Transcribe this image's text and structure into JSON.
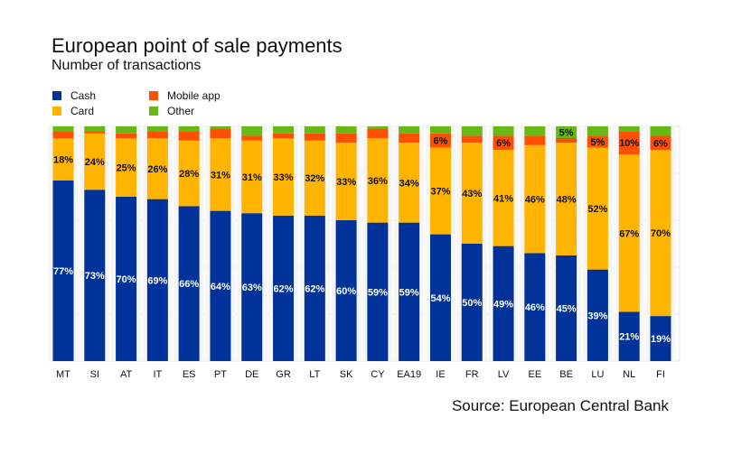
{
  "chart_data": {
    "type": "bar",
    "stacked": true,
    "title": "European point of sale payments",
    "subtitle": "Number of transactions",
    "source": "Source: European Central Bank",
    "legend_position": "top-left",
    "grid": true,
    "ylim": [
      0,
      100
    ],
    "unit": "%",
    "categories": [
      "MT",
      "SI",
      "AT",
      "IT",
      "ES",
      "PT",
      "DE",
      "GR",
      "LT",
      "SK",
      "CY",
      "EA19",
      "IE",
      "FR",
      "LV",
      "EE",
      "BE",
      "LU",
      "NL",
      "FI"
    ],
    "series": [
      {
        "name": "Cash",
        "color": "#003399",
        "values": [
          77,
          73,
          70,
          69,
          66,
          64,
          63,
          62,
          62,
          60,
          59,
          59,
          54,
          50,
          49,
          46,
          45,
          39,
          21,
          19
        ],
        "labeled": [
          true,
          true,
          true,
          true,
          true,
          true,
          true,
          true,
          true,
          true,
          true,
          true,
          true,
          true,
          true,
          true,
          true,
          true,
          true,
          true
        ]
      },
      {
        "name": "Card",
        "color": "#ffb400",
        "values": [
          18,
          24,
          25,
          26,
          28,
          31,
          31,
          33,
          32,
          33,
          36,
          34,
          37,
          43,
          41,
          46,
          48,
          52,
          67,
          70
        ],
        "labeled": [
          true,
          true,
          true,
          true,
          true,
          true,
          true,
          true,
          true,
          true,
          true,
          true,
          true,
          true,
          true,
          true,
          true,
          true,
          true,
          true
        ]
      },
      {
        "name": "Mobile app",
        "color": "#ff4f00",
        "values": [
          3,
          1,
          2,
          3,
          4,
          4,
          2,
          2,
          3,
          4,
          4,
          4,
          6,
          3,
          6,
          4,
          2,
          5,
          10,
          6
        ],
        "labeled": [
          false,
          false,
          false,
          false,
          false,
          false,
          false,
          false,
          false,
          false,
          false,
          false,
          true,
          false,
          true,
          false,
          false,
          true,
          true,
          true
        ]
      },
      {
        "name": "Other",
        "color": "#66b814",
        "values": [
          2,
          2,
          3,
          2,
          2,
          1,
          4,
          3,
          3,
          3,
          1,
          3,
          3,
          4,
          4,
          4,
          5,
          4,
          2,
          4
        ],
        "labeled": [
          false,
          false,
          false,
          false,
          false,
          false,
          false,
          false,
          false,
          false,
          false,
          false,
          false,
          false,
          false,
          false,
          true,
          false,
          false,
          false
        ]
      }
    ]
  }
}
